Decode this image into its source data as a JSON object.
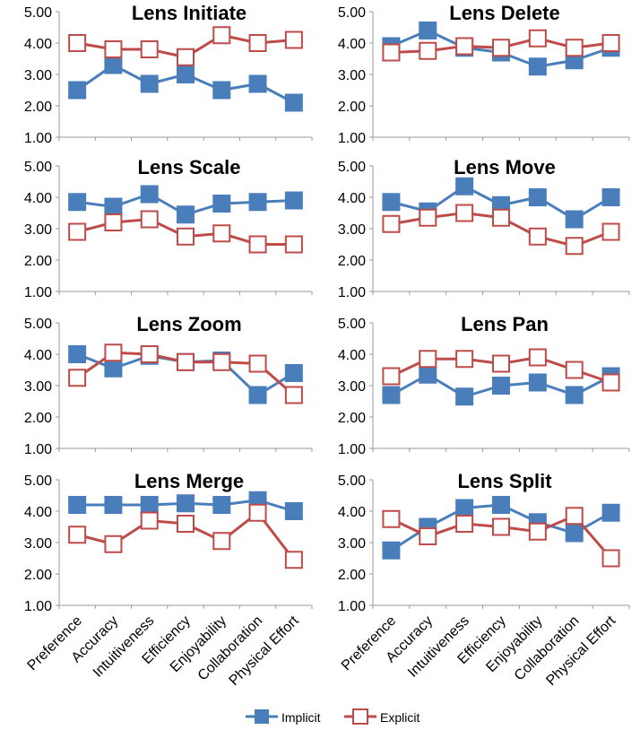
{
  "colors": {
    "implicit": "#4a7ebb",
    "explicit": "#be4b48",
    "axis": "#999999",
    "text": "#000000"
  },
  "legend": {
    "position": "bottom",
    "implicit_label": "Implicit",
    "explicit_label": "Explicit"
  },
  "chart_data": [
    {
      "type": "line",
      "title": "Lens Initiate",
      "categories": [
        "Preference",
        "Accuracy",
        "Intuitiveness",
        "Efficiency",
        "Enjoyability",
        "Collaboration",
        "Physical Effort"
      ],
      "ylim": [
        1,
        5
      ],
      "yticks": [
        "1.00",
        "2.00",
        "3.00",
        "4.00",
        "5.00"
      ],
      "grid": false,
      "series": [
        {
          "name": "Implicit",
          "values": [
            2.5,
            3.3,
            2.7,
            3.0,
            2.5,
            2.7,
            2.1
          ]
        },
        {
          "name": "Explicit",
          "values": [
            4.0,
            3.8,
            3.8,
            3.55,
            4.25,
            4.0,
            4.1
          ]
        }
      ]
    },
    {
      "type": "line",
      "title": "Lens Delete",
      "categories": [
        "Preference",
        "Accuracy",
        "Intuitiveness",
        "Efficiency",
        "Enjoyability",
        "Collaboration",
        "Physical Effort"
      ],
      "ylim": [
        1,
        5
      ],
      "yticks": [
        "1.00",
        "2.00",
        "3.00",
        "4.00",
        "5.00"
      ],
      "grid": false,
      "series": [
        {
          "name": "Implicit",
          "values": [
            3.9,
            4.4,
            3.85,
            3.7,
            3.25,
            3.45,
            3.85
          ]
        },
        {
          "name": "Explicit",
          "values": [
            3.7,
            3.75,
            3.9,
            3.85,
            4.15,
            3.85,
            4.0
          ]
        }
      ]
    },
    {
      "type": "line",
      "title": "Lens Scale",
      "categories": [
        "Preference",
        "Accuracy",
        "Intuitiveness",
        "Efficiency",
        "Enjoyability",
        "Collaboration",
        "Physical Effort"
      ],
      "ylim": [
        1,
        5
      ],
      "yticks": [
        "1.00",
        "2.00",
        "3.00",
        "4.00",
        "5.00"
      ],
      "grid": false,
      "series": [
        {
          "name": "Implicit",
          "values": [
            3.85,
            3.7,
            4.1,
            3.45,
            3.8,
            3.85,
            3.9
          ]
        },
        {
          "name": "Explicit",
          "values": [
            2.9,
            3.2,
            3.3,
            2.75,
            2.85,
            2.5,
            2.5
          ]
        }
      ]
    },
    {
      "type": "line",
      "title": "Lens Move",
      "categories": [
        "Preference",
        "Accuracy",
        "Intuitiveness",
        "Efficiency",
        "Enjoyability",
        "Collaboration",
        "Physical Effort"
      ],
      "ylim": [
        1,
        5
      ],
      "yticks": [
        "1.00",
        "2.00",
        "3.00",
        "4.00",
        "5.00"
      ],
      "grid": false,
      "series": [
        {
          "name": "Implicit",
          "values": [
            3.85,
            3.55,
            4.35,
            3.75,
            4.0,
            3.3,
            4.0
          ]
        },
        {
          "name": "Explicit",
          "values": [
            3.15,
            3.35,
            3.5,
            3.35,
            2.75,
            2.45,
            2.9
          ]
        }
      ]
    },
    {
      "type": "line",
      "title": "Lens Zoom",
      "categories": [
        "Preference",
        "Accuracy",
        "Intuitiveness",
        "Efficiency",
        "Enjoyability",
        "Collaboration",
        "Physical Effort"
      ],
      "ylim": [
        1,
        5
      ],
      "yticks": [
        "1.00",
        "2.00",
        "3.00",
        "4.00",
        "5.00"
      ],
      "grid": false,
      "series": [
        {
          "name": "Implicit",
          "values": [
            4.0,
            3.55,
            3.95,
            3.75,
            3.8,
            2.7,
            3.4
          ]
        },
        {
          "name": "Explicit",
          "values": [
            3.25,
            4.05,
            4.0,
            3.75,
            3.75,
            3.7,
            2.7
          ]
        }
      ]
    },
    {
      "type": "line",
      "title": "Lens Pan",
      "categories": [
        "Preference",
        "Accuracy",
        "Intuitiveness",
        "Efficiency",
        "Enjoyability",
        "Collaboration",
        "Physical Effort"
      ],
      "ylim": [
        1,
        5
      ],
      "yticks": [
        "1.00",
        "2.00",
        "3.00",
        "4.00",
        "5.00"
      ],
      "grid": false,
      "series": [
        {
          "name": "Implicit",
          "values": [
            2.7,
            3.35,
            2.65,
            3.0,
            3.1,
            2.7,
            3.3
          ]
        },
        {
          "name": "Explicit",
          "values": [
            3.3,
            3.85,
            3.85,
            3.7,
            3.9,
            3.5,
            3.1
          ]
        }
      ]
    },
    {
      "type": "line",
      "title": "Lens Merge",
      "categories": [
        "Preference",
        "Accuracy",
        "Intuitiveness",
        "Efficiency",
        "Enjoyability",
        "Collaboration",
        "Physical Effort"
      ],
      "ylim": [
        1,
        5
      ],
      "yticks": [
        "1.00",
        "2.00",
        "3.00",
        "4.00",
        "5.00"
      ],
      "grid": false,
      "series": [
        {
          "name": "Implicit",
          "values": [
            4.2,
            4.2,
            4.2,
            4.25,
            4.2,
            4.35,
            4.0
          ]
        },
        {
          "name": "Explicit",
          "values": [
            3.25,
            2.95,
            3.7,
            3.6,
            3.05,
            3.95,
            2.45
          ]
        }
      ]
    },
    {
      "type": "line",
      "title": "Lens Split",
      "categories": [
        "Preference",
        "Accuracy",
        "Intuitiveness",
        "Efficiency",
        "Enjoyability",
        "Collaboration",
        "Physical Effort"
      ],
      "ylim": [
        1,
        5
      ],
      "yticks": [
        "1.00",
        "2.00",
        "3.00",
        "4.00",
        "5.00"
      ],
      "grid": false,
      "series": [
        {
          "name": "Implicit",
          "values": [
            2.75,
            3.5,
            4.1,
            4.2,
            3.65,
            3.3,
            3.95
          ]
        },
        {
          "name": "Explicit",
          "values": [
            3.75,
            3.2,
            3.6,
            3.5,
            3.35,
            3.85,
            2.5
          ]
        }
      ]
    }
  ]
}
